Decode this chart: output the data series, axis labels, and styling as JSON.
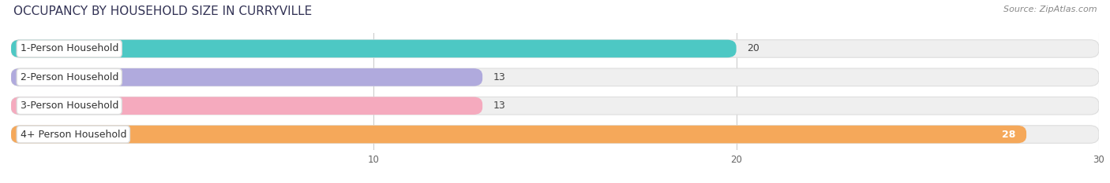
{
  "title": "OCCUPANCY BY HOUSEHOLD SIZE IN CURRYVILLE",
  "source": "Source: ZipAtlas.com",
  "categories": [
    "1-Person Household",
    "2-Person Household",
    "3-Person Household",
    "4+ Person Household"
  ],
  "values": [
    20,
    13,
    13,
    28
  ],
  "bar_colors": [
    "#4DC8C4",
    "#B0AADD",
    "#F5AABE",
    "#F5A85A"
  ],
  "xlim": [
    0,
    30
  ],
  "xticks": [
    10,
    20,
    30
  ],
  "bar_height": 0.62,
  "figsize": [
    14.06,
    2.33
  ],
  "dpi": 100,
  "title_fontsize": 11,
  "label_fontsize": 9,
  "value_fontsize": 9,
  "source_fontsize": 8
}
